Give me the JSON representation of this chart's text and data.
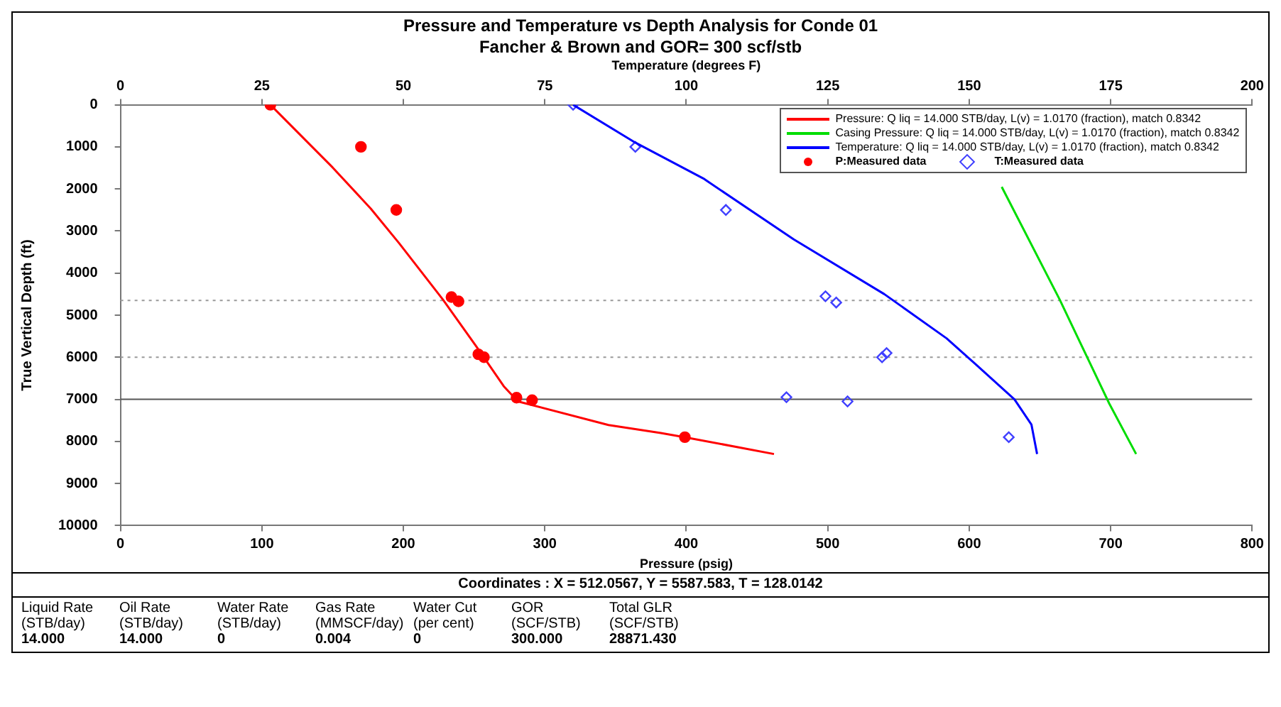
{
  "chart_data": {
    "type": "scatter",
    "title": "Pressure and Temperature vs Depth Analysis for Conde 01",
    "subtitle": "Fancher & Brown and GOR= 300 scf/stb",
    "xlabel": "Pressure (psig)",
    "x2label": "Temperature (degrees F)",
    "ylabel": "True Vertical Depth (ft)",
    "xlim": [
      0,
      800
    ],
    "xticks": [
      0,
      100,
      200,
      300,
      400,
      500,
      600,
      700,
      800
    ],
    "x2lim": [
      0,
      200
    ],
    "x2ticks": [
      0,
      25,
      50,
      75,
      100,
      125,
      150,
      175,
      200
    ],
    "ylim": [
      10000,
      0
    ],
    "yticks": [
      0,
      1000,
      2000,
      3000,
      4000,
      5000,
      6000,
      7000,
      8000,
      9000,
      10000
    ],
    "legend": "top right",
    "series": [
      {
        "name": "Pressure: Q liq = 14.000 STB/day, L(v) = 1.0170 (fraction), match 0.8342",
        "type": "line",
        "marker": "none",
        "color": "#ff0000",
        "x": [
          106,
          150,
          177,
          197,
          228,
          254,
          271,
          281,
          345,
          382,
          399,
          462
        ],
        "values": [
          0,
          1490,
          2470,
          3290,
          4630,
          5860,
          6690,
          7050,
          7610,
          7800,
          7900,
          8300
        ]
      },
      {
        "name": "Casing Pressure: Q liq = 14.000 STB/day, L(v) = 1.0170 (fraction), match 0.8342",
        "type": "line",
        "marker": "none",
        "color": "#00dd00",
        "x": [
          623,
          664,
          699,
          718
        ],
        "values": [
          1950,
          4630,
          7100,
          8300
        ]
      },
      {
        "name": "Temperature: Q liq = 14.000 STB/day, L(v) = 1.0170 (fraction), match 0.8342",
        "type": "line",
        "marker": "none",
        "axis": "x2",
        "color": "#0000ff",
        "x": [
          80,
          91,
          103,
          119,
          135,
          146,
          151,
          158,
          161,
          162
        ],
        "values": [
          0,
          900,
          1750,
          3200,
          4500,
          5550,
          6150,
          7000,
          7600,
          8300
        ]
      },
      {
        "name": "P:Measured data",
        "type": "scatter",
        "marker": "circle",
        "color": "#ff0000",
        "x": [
          106,
          170,
          195,
          234,
          239,
          253,
          257,
          280,
          291,
          399
        ],
        "values": [
          0,
          1000,
          2500,
          4570,
          4670,
          5930,
          6000,
          6960,
          7020,
          7900
        ]
      },
      {
        "name": "T:Measured data",
        "type": "scatter",
        "marker": "diamond",
        "axis": "x2",
        "color": "#4040ff",
        "x": [
          80,
          91,
          107,
          124.6,
          126.5,
          134.6,
          135.4,
          117.7,
          128.5,
          157
        ],
        "values": [
          0,
          1000,
          2500,
          4550,
          4700,
          6000,
          5900,
          6950,
          7050,
          7900
        ]
      }
    ],
    "ref_lines": [
      {
        "axis": "y",
        "value": 4650,
        "color": "#999999",
        "line_style": "dotted"
      },
      {
        "axis": "y",
        "value": 6000,
        "color": "#999999",
        "line_style": "dotted"
      },
      {
        "axis": "y",
        "value": 7000,
        "color": "#555555",
        "line_style": "solid"
      }
    ],
    "annotations": [
      "Coordinates : X = 512.0567, Y = 5587.583, T = 128.0142",
      "Liquid Rate (STB/day)",
      "14.000",
      "Oil Rate (STB/day)",
      "14.000",
      "Water Rate (STB/day)",
      "0",
      "Gas Rate (MMSCF/day)",
      "0.004",
      "Water Cut (per cent)",
      "0",
      "GOR (SCF/STB)",
      "300.000",
      "Total GLR (SCF/STB)",
      "28871.430"
    ]
  }
}
